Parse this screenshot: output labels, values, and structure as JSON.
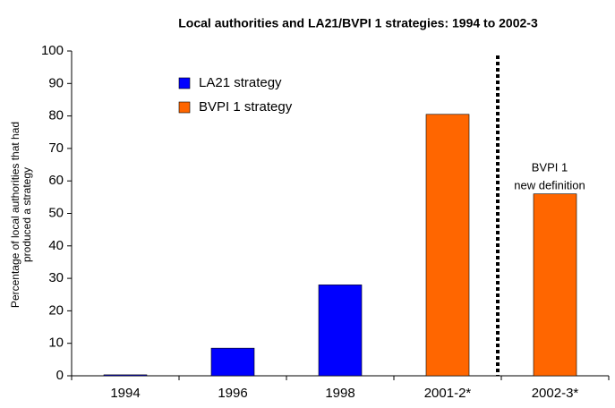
{
  "chart_data": {
    "type": "bar",
    "title": "Local authorities and LA21/BVPI 1 strategies: 1994 to 2002-3",
    "y_label": [
      "Percentage of local authorities that had",
      "produced a strategy"
    ],
    "categories": [
      "1994",
      "1996",
      "1998",
      "2001-2*",
      "2002-3*"
    ],
    "series": [
      {
        "name": "LA21 strategy",
        "color": "#0000ff",
        "values": [
          0.3,
          8.5,
          28,
          null,
          null
        ]
      },
      {
        "name": "BVPI 1 strategy",
        "color": "#ff6600",
        "values": [
          null,
          null,
          null,
          80.5,
          56
        ]
      }
    ],
    "ylim": [
      0,
      100
    ],
    "yticks": [
      0,
      10,
      20,
      30,
      40,
      50,
      60,
      70,
      80,
      90,
      100
    ],
    "annotation": [
      "BVPI 1",
      "new definition"
    ],
    "legend": "upper left"
  }
}
